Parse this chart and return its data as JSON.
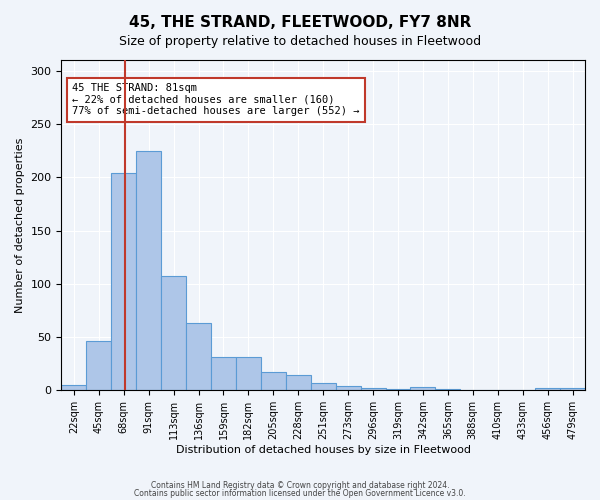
{
  "title": "45, THE STRAND, FLEETWOOD, FY7 8NR",
  "subtitle": "Size of property relative to detached houses in Fleetwood",
  "xlabel": "Distribution of detached houses by size in Fleetwood",
  "ylabel": "Number of detached properties",
  "bar_color": "#aec6e8",
  "bar_edge_color": "#5b9bd5",
  "categories": [
    "22sqm",
    "45sqm",
    "68sqm",
    "91sqm",
    "113sqm",
    "136sqm",
    "159sqm",
    "182sqm",
    "205sqm",
    "228sqm",
    "251sqm",
    "273sqm",
    "296sqm",
    "319sqm",
    "342sqm",
    "365sqm",
    "388sqm",
    "410sqm",
    "433sqm",
    "456sqm",
    "479sqm"
  ],
  "values": [
    5,
    46,
    204,
    225,
    107,
    63,
    31,
    31,
    17,
    14,
    7,
    4,
    2,
    1,
    3,
    1,
    0,
    0,
    0,
    2,
    2
  ],
  "ylim": [
    0,
    310
  ],
  "yticks": [
    0,
    50,
    100,
    150,
    200,
    250,
    300
  ],
  "property_sqm": 81,
  "property_label": "45 THE STRAND: 81sqm",
  "pct_smaller": "22% of detached houses are smaller (160)",
  "pct_larger": "77% of semi-detached houses are larger (552)",
  "vline_color": "#c0392b",
  "annotation_box_color": "#c0392b",
  "footer_line1": "Contains HM Land Registry data © Crown copyright and database right 2024.",
  "footer_line2": "Contains public sector information licensed under the Open Government Licence v3.0.",
  "background_color": "#f0f4fa",
  "plot_bg_color": "#f0f4fa"
}
